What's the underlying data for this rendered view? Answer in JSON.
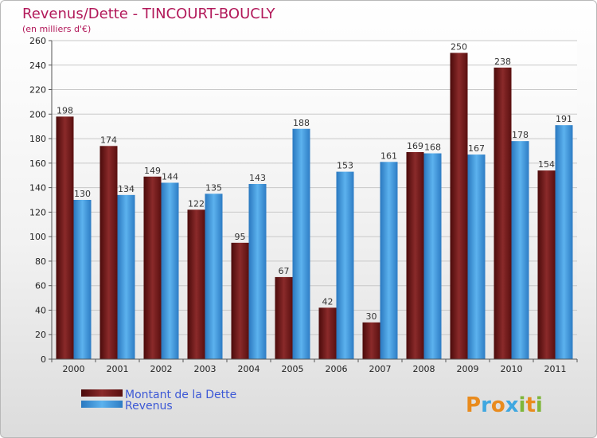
{
  "chart_data": {
    "type": "bar",
    "title": "Revenus/Dette - TINCOURT-BOUCLY",
    "subtitle": "(en milliers d'€)",
    "categories": [
      "2000",
      "2001",
      "2002",
      "2003",
      "2004",
      "2005",
      "2006",
      "2007",
      "2008",
      "2009",
      "2010",
      "2011"
    ],
    "series": [
      {
        "name": "Montant de la Dette",
        "color": "#7a1f1f",
        "values": [
          198,
          174,
          149,
          122,
          95,
          67,
          42,
          30,
          169,
          250,
          238,
          154
        ]
      },
      {
        "name": "Revenus",
        "color": "#3f97da",
        "values": [
          130,
          134,
          144,
          135,
          143,
          188,
          153,
          161,
          168,
          167,
          178,
          191
        ]
      }
    ],
    "ylim": [
      0,
      260
    ],
    "yticks": [
      0,
      20,
      40,
      60,
      80,
      100,
      120,
      140,
      160,
      180,
      200,
      220,
      240,
      260
    ],
    "grid": true,
    "legend_position": "bottom-left"
  },
  "logo": {
    "text": "Proxiti",
    "letters": [
      "P",
      "r",
      "o",
      "x",
      "i",
      "t",
      "i"
    ],
    "colors": [
      "#e98b1d",
      "#3fa7e0",
      "#e98b1d",
      "#3fa7e0",
      "#7fb63a",
      "#e98b1d",
      "#7fb63a"
    ]
  }
}
